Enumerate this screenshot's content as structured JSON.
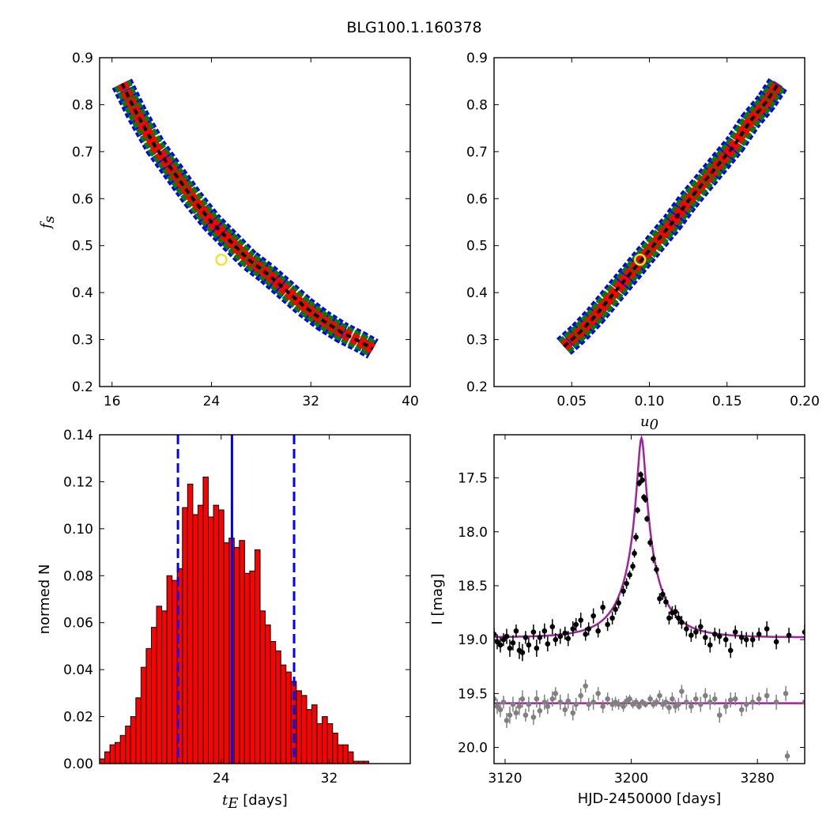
{
  "figure": {
    "title": "BLG100.1.160378"
  },
  "colors": {
    "blue_region": "#0000ff",
    "green_region": "#008000",
    "red_region": "#ff0000",
    "black_region": "#000000",
    "best_fit_marker": "#f2e32a",
    "histogram_fill": "#ff0000",
    "histogram_edge": "#000000",
    "median_line": "#0000ff",
    "model_curve": "#a0249b",
    "data_points": "#000000",
    "residual_points": "#808080"
  },
  "chart_data": [
    {
      "type": "scatter",
      "subtype": "density-contour",
      "xlabel": "",
      "ylabel": "f_s",
      "xlim": [
        15,
        40
      ],
      "ylim": [
        0.2,
        0.9
      ],
      "xticks": [
        "16",
        "24",
        "32",
        "40"
      ],
      "yticks": [
        "0.2",
        "0.3",
        "0.4",
        "0.5",
        "0.6",
        "0.7",
        "0.8",
        "0.9"
      ],
      "regions": [
        "blue",
        "green",
        "red",
        "black"
      ],
      "ridge_x": [
        16.8,
        18.0,
        19.5,
        21.0,
        22.5,
        24.0,
        25.5,
        27.0,
        28.5,
        30.0,
        31.5,
        33.0,
        34.5,
        36.0,
        37.0
      ],
      "ridge_y": [
        0.845,
        0.78,
        0.71,
        0.655,
        0.6,
        0.55,
        0.51,
        0.47,
        0.44,
        0.405,
        0.37,
        0.34,
        0.315,
        0.295,
        0.28
      ],
      "best_fit": {
        "x": 24.8,
        "y": 0.47
      }
    },
    {
      "type": "scatter",
      "subtype": "density-contour",
      "xlabel": "u_0",
      "ylabel": "",
      "xlim": [
        0.0,
        0.2
      ],
      "ylim": [
        0.2,
        0.9
      ],
      "xticks": [
        "0.05",
        "0.10",
        "0.15",
        "0.20"
      ],
      "yticks": [
        "0.2",
        "0.3",
        "0.4",
        "0.5",
        "0.6",
        "0.7",
        "0.8",
        "0.9"
      ],
      "regions": [
        "blue",
        "green",
        "red",
        "black"
      ],
      "ridge_x": [
        0.045,
        0.055,
        0.065,
        0.075,
        0.085,
        0.095,
        0.105,
        0.115,
        0.125,
        0.135,
        0.145,
        0.155,
        0.165,
        0.175,
        0.183
      ],
      "ridge_y": [
        0.285,
        0.315,
        0.35,
        0.39,
        0.43,
        0.47,
        0.51,
        0.55,
        0.595,
        0.635,
        0.675,
        0.715,
        0.765,
        0.805,
        0.845
      ],
      "best_fit": {
        "x": 0.094,
        "y": 0.47
      }
    },
    {
      "type": "bar",
      "subtype": "histogram",
      "xlabel": "t_E [days]",
      "ylabel": "normed N",
      "xlim": [
        15.0,
        38.0
      ],
      "ylim": [
        0.0,
        0.14
      ],
      "xticks": [
        "24",
        "32"
      ],
      "yticks": [
        "0.00",
        "0.02",
        "0.04",
        "0.06",
        "0.08",
        "0.10",
        "0.12",
        "0.14"
      ],
      "bin_start": 15.0,
      "bin_width": 0.3833,
      "values": [
        0.002,
        0.005,
        0.008,
        0.009,
        0.012,
        0.016,
        0.02,
        0.028,
        0.041,
        0.049,
        0.058,
        0.067,
        0.065,
        0.08,
        0.078,
        0.083,
        0.109,
        0.119,
        0.106,
        0.11,
        0.122,
        0.105,
        0.11,
        0.108,
        0.094,
        0.096,
        0.092,
        0.095,
        0.081,
        0.082,
        0.091,
        0.065,
        0.059,
        0.052,
        0.048,
        0.042,
        0.039,
        0.035,
        0.031,
        0.029,
        0.023,
        0.025,
        0.017,
        0.02,
        0.017,
        0.013,
        0.008,
        0.008,
        0.005,
        0.001,
        0.001,
        0.001,
        0.0,
        0.0,
        0.0,
        0.0,
        0.0,
        0.0,
        0.0,
        0.0
      ],
      "median": 24.8,
      "lower_bound": 20.8,
      "upper_bound": 29.4
    },
    {
      "type": "scatter",
      "subtype": "light-curve",
      "xlabel": "HJD-2450000 [days]",
      "ylabel": "I [mag]",
      "xlim": [
        3113,
        3310
      ],
      "ylim": [
        20.15,
        17.1
      ],
      "y_inverted": true,
      "xticks": [
        "3120",
        "3200",
        "3280"
      ],
      "yticks": [
        "17.5",
        "18.0",
        "18.5",
        "19.0",
        "19.5",
        "20.0"
      ],
      "model": {
        "t0": 3206.5,
        "peak_mag": 17.13,
        "baseline_mag": 18.98,
        "tE": 24.8,
        "u0": 0.094,
        "fs": 0.47
      },
      "residual_baseline": 19.59,
      "series": [
        {
          "x": [
            3113,
            3115,
            3117,
            3119,
            3121,
            3123,
            3125,
            3127,
            3129,
            3131,
            3133,
            3135,
            3138,
            3140,
            3142,
            3145,
            3147,
            3150,
            3152,
            3155,
            3158,
            3160,
            3163,
            3165,
            3168,
            3171,
            3173,
            3176,
            3179,
            3182,
            3185,
            3188,
            3190,
            3192,
            3195,
            3197,
            3199,
            3201,
            3202,
            3203,
            3204,
            3205,
            3206,
            3207,
            3208,
            3209,
            3210,
            3212,
            3214,
            3216,
            3218,
            3220,
            3222,
            3224,
            3226,
            3228,
            3230,
            3232,
            3235,
            3238,
            3241,
            3244,
            3247,
            3250,
            3253,
            3256,
            3260,
            3263,
            3266,
            3270,
            3273,
            3277,
            3281,
            3286,
            3292,
            3300,
            3310
          ],
          "y": [
            18.95,
            19.02,
            19.05,
            19.0,
            18.97,
            19.08,
            19.03,
            18.92,
            19.1,
            19.12,
            18.98,
            19.05,
            18.93,
            19.08,
            18.98,
            18.92,
            19.04,
            18.88,
            19.0,
            18.97,
            18.94,
            18.99,
            18.9,
            18.86,
            18.82,
            18.95,
            18.9,
            18.78,
            18.92,
            18.7,
            18.86,
            18.8,
            18.72,
            18.66,
            18.55,
            18.48,
            18.4,
            18.32,
            18.2,
            18.05,
            17.8,
            17.55,
            17.47,
            17.52,
            17.68,
            17.7,
            17.88,
            18.1,
            18.25,
            18.35,
            18.62,
            18.58,
            18.65,
            18.8,
            18.75,
            18.74,
            18.8,
            18.84,
            18.9,
            18.96,
            18.93,
            18.88,
            18.98,
            19.05,
            18.95,
            18.97,
            19.0,
            19.1,
            18.93,
            18.98,
            19.0,
            19.0,
            18.95,
            18.9,
            19.02,
            18.96,
            18.93
          ],
          "yerr": [
            0.06,
            0.07,
            0.07,
            0.06,
            0.07,
            0.08,
            0.07,
            0.06,
            0.08,
            0.08,
            0.06,
            0.07,
            0.07,
            0.08,
            0.06,
            0.07,
            0.07,
            0.07,
            0.06,
            0.07,
            0.06,
            0.07,
            0.07,
            0.06,
            0.07,
            0.06,
            0.06,
            0.07,
            0.06,
            0.06,
            0.06,
            0.06,
            0.05,
            0.05,
            0.05,
            0.05,
            0.04,
            0.04,
            0.04,
            0.04,
            0.03,
            0.03,
            0.03,
            0.03,
            0.03,
            0.03,
            0.03,
            0.04,
            0.04,
            0.04,
            0.05,
            0.05,
            0.05,
            0.06,
            0.06,
            0.06,
            0.06,
            0.06,
            0.07,
            0.06,
            0.06,
            0.07,
            0.07,
            0.07,
            0.06,
            0.07,
            0.07,
            0.07,
            0.06,
            0.06,
            0.07,
            0.07,
            0.06,
            0.07,
            0.07,
            0.07,
            0.07
          ]
        },
        {
          "x": [
            3113,
            3115,
            3117,
            3119,
            3121,
            3123,
            3125,
            3127,
            3129,
            3131,
            3133,
            3135,
            3138,
            3140,
            3142,
            3145,
            3147,
            3150,
            3152,
            3155,
            3158,
            3160,
            3163,
            3165,
            3168,
            3171,
            3173,
            3176,
            3179,
            3182,
            3185,
            3188,
            3190,
            3192,
            3195,
            3197,
            3199,
            3201,
            3203,
            3205,
            3207,
            3209,
            3212,
            3214,
            3216,
            3218,
            3220,
            3222,
            3224,
            3226,
            3228,
            3230,
            3232,
            3235,
            3238,
            3241,
            3244,
            3247,
            3250,
            3253,
            3256,
            3260,
            3263,
            3266,
            3270,
            3273,
            3277,
            3281,
            3286,
            3292,
            3298,
            3299,
            3310
          ],
          "y": [
            19.55,
            19.62,
            19.65,
            19.58,
            19.75,
            19.7,
            19.6,
            19.68,
            19.62,
            19.55,
            19.7,
            19.6,
            19.72,
            19.55,
            19.66,
            19.58,
            19.62,
            19.55,
            19.5,
            19.58,
            19.65,
            19.57,
            19.68,
            19.6,
            19.52,
            19.43,
            19.6,
            19.58,
            19.5,
            19.62,
            19.55,
            19.6,
            19.58,
            19.6,
            19.62,
            19.57,
            19.55,
            19.6,
            19.58,
            19.62,
            19.58,
            19.6,
            19.55,
            19.6,
            19.58,
            19.52,
            19.6,
            19.58,
            19.63,
            19.55,
            19.62,
            19.6,
            19.48,
            19.58,
            19.62,
            19.55,
            19.6,
            19.52,
            19.58,
            19.55,
            19.7,
            19.62,
            19.56,
            19.55,
            19.65,
            19.6,
            19.58,
            19.55,
            19.52,
            19.58,
            19.5,
            20.08,
            19.58
          ],
          "yerr": [
            0.06,
            0.07,
            0.07,
            0.06,
            0.07,
            0.08,
            0.07,
            0.06,
            0.08,
            0.08,
            0.06,
            0.07,
            0.07,
            0.08,
            0.06,
            0.07,
            0.07,
            0.07,
            0.06,
            0.07,
            0.06,
            0.07,
            0.07,
            0.06,
            0.07,
            0.06,
            0.06,
            0.07,
            0.06,
            0.06,
            0.06,
            0.06,
            0.05,
            0.05,
            0.05,
            0.05,
            0.04,
            0.04,
            0.04,
            0.03,
            0.03,
            0.03,
            0.04,
            0.04,
            0.04,
            0.05,
            0.05,
            0.05,
            0.06,
            0.06,
            0.06,
            0.06,
            0.06,
            0.07,
            0.06,
            0.06,
            0.07,
            0.07,
            0.07,
            0.06,
            0.07,
            0.07,
            0.07,
            0.06,
            0.06,
            0.07,
            0.07,
            0.06,
            0.07,
            0.07,
            0.07,
            0.05,
            0.07
          ]
        }
      ]
    }
  ]
}
